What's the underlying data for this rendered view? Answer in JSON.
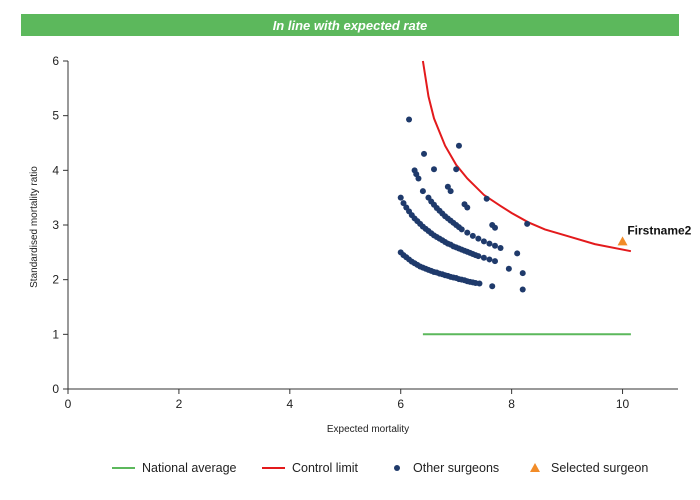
{
  "banner": {
    "text": "In line with expected rate",
    "color": "#5cb85c"
  },
  "chart_data": {
    "type": "scatter",
    "title": "In line with expected rate",
    "xlabel": "Expected mortality",
    "ylabel": "Standardised mortality ratio",
    "xlim": [
      0,
      11
    ],
    "ylim": [
      0,
      6
    ],
    "xticks": [
      0,
      2,
      4,
      6,
      8,
      10
    ],
    "yticks": [
      0,
      1,
      2,
      3,
      4,
      5,
      6
    ],
    "grid": false,
    "legend_position": "bottom",
    "annotation": {
      "text": "Firstname2",
      "x": 10.05,
      "y": 2.9
    },
    "series": [
      {
        "name": "National average",
        "kind": "line",
        "color": "#5cb85c",
        "points": [
          [
            6.4,
            1.0
          ],
          [
            10.15,
            1.0
          ]
        ]
      },
      {
        "name": "Control limit",
        "kind": "line",
        "color": "#e31a1c",
        "points": [
          [
            6.4,
            6.0
          ],
          [
            6.5,
            5.35
          ],
          [
            6.6,
            4.95
          ],
          [
            6.8,
            4.45
          ],
          [
            7.0,
            4.1
          ],
          [
            7.2,
            3.85
          ],
          [
            7.5,
            3.55
          ],
          [
            7.8,
            3.35
          ],
          [
            8.0,
            3.22
          ],
          [
            8.3,
            3.05
          ],
          [
            8.6,
            2.92
          ],
          [
            9.0,
            2.8
          ],
          [
            9.5,
            2.65
          ],
          [
            10.15,
            2.52
          ]
        ]
      },
      {
        "name": "Other surgeons",
        "kind": "scatter",
        "color": "#1f3a6b",
        "points": [
          [
            6.0,
            2.5
          ],
          [
            6.05,
            2.45
          ],
          [
            6.1,
            2.41
          ],
          [
            6.15,
            2.37
          ],
          [
            6.2,
            2.33
          ],
          [
            6.25,
            2.3
          ],
          [
            6.3,
            2.27
          ],
          [
            6.35,
            2.24
          ],
          [
            6.4,
            2.22
          ],
          [
            6.45,
            2.2
          ],
          [
            6.5,
            2.18
          ],
          [
            6.55,
            2.16
          ],
          [
            6.6,
            2.14
          ],
          [
            6.65,
            2.13
          ],
          [
            6.7,
            2.11
          ],
          [
            6.75,
            2.1
          ],
          [
            6.8,
            2.08
          ],
          [
            6.85,
            2.07
          ],
          [
            6.9,
            2.05
          ],
          [
            6.95,
            2.04
          ],
          [
            7.0,
            2.03
          ],
          [
            7.05,
            2.01
          ],
          [
            7.1,
            2.0
          ],
          [
            7.15,
            1.99
          ],
          [
            7.2,
            1.97
          ],
          [
            7.25,
            1.96
          ],
          [
            7.3,
            1.95
          ],
          [
            7.35,
            1.94
          ],
          [
            7.42,
            1.93
          ],
          [
            6.0,
            3.5
          ],
          [
            6.05,
            3.4
          ],
          [
            6.1,
            3.32
          ],
          [
            6.15,
            3.25
          ],
          [
            6.2,
            3.18
          ],
          [
            6.25,
            3.12
          ],
          [
            6.3,
            3.07
          ],
          [
            6.35,
            3.02
          ],
          [
            6.4,
            2.97
          ],
          [
            6.45,
            2.93
          ],
          [
            6.5,
            2.89
          ],
          [
            6.55,
            2.85
          ],
          [
            6.6,
            2.81
          ],
          [
            6.65,
            2.78
          ],
          [
            6.7,
            2.75
          ],
          [
            6.75,
            2.72
          ],
          [
            6.8,
            2.69
          ],
          [
            6.85,
            2.66
          ],
          [
            6.9,
            2.64
          ],
          [
            6.95,
            2.61
          ],
          [
            7.0,
            2.59
          ],
          [
            7.05,
            2.57
          ],
          [
            7.1,
            2.55
          ],
          [
            7.15,
            2.53
          ],
          [
            7.2,
            2.51
          ],
          [
            7.25,
            2.49
          ],
          [
            7.3,
            2.47
          ],
          [
            7.35,
            2.45
          ],
          [
            7.4,
            2.43
          ],
          [
            7.5,
            2.4
          ],
          [
            7.6,
            2.37
          ],
          [
            7.7,
            2.34
          ],
          [
            6.5,
            3.5
          ],
          [
            6.55,
            3.43
          ],
          [
            6.6,
            3.37
          ],
          [
            6.65,
            3.31
          ],
          [
            6.7,
            3.26
          ],
          [
            6.75,
            3.21
          ],
          [
            6.8,
            3.16
          ],
          [
            6.85,
            3.12
          ],
          [
            6.9,
            3.08
          ],
          [
            6.95,
            3.04
          ],
          [
            7.0,
            3.0
          ],
          [
            7.05,
            2.96
          ],
          [
            7.1,
            2.92
          ],
          [
            7.2,
            2.86
          ],
          [
            7.3,
            2.8
          ],
          [
            7.4,
            2.75
          ],
          [
            7.5,
            2.7
          ],
          [
            7.6,
            2.66
          ],
          [
            7.7,
            2.62
          ],
          [
            7.8,
            2.58
          ],
          [
            6.25,
            4.0
          ],
          [
            6.28,
            3.93
          ],
          [
            6.32,
            3.85
          ],
          [
            6.4,
            3.62
          ],
          [
            6.42,
            4.3
          ],
          [
            6.15,
            4.93
          ],
          [
            6.6,
            4.02
          ],
          [
            6.85,
            3.7
          ],
          [
            6.9,
            3.62
          ],
          [
            7.0,
            4.02
          ],
          [
            7.05,
            4.45
          ],
          [
            7.15,
            3.38
          ],
          [
            7.2,
            3.32
          ],
          [
            7.55,
            3.48
          ],
          [
            7.65,
            3.0
          ],
          [
            7.7,
            2.95
          ],
          [
            7.95,
            2.2
          ],
          [
            8.1,
            2.48
          ],
          [
            8.2,
            2.12
          ],
          [
            8.28,
            3.02
          ],
          [
            7.65,
            1.88
          ],
          [
            8.2,
            1.82
          ]
        ]
      },
      {
        "name": "Selected surgeon",
        "kind": "triangle",
        "color": "#f28c28",
        "points": [
          [
            10.0,
            2.7
          ]
        ]
      }
    ]
  }
}
